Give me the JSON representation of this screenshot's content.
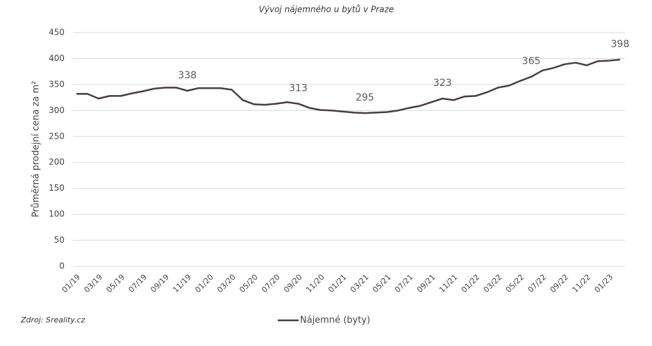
{
  "chart_data": {
    "type": "line",
    "title": "Vývoj nájemného u bytů v Praze",
    "y_label": "Průměrná prodejní cena za m²",
    "source": "Zdroj: Sreality.cz",
    "categories": [
      "01/19",
      null,
      "03/19",
      null,
      "05/19",
      null,
      "07/19",
      null,
      "09/19",
      null,
      "11/19",
      null,
      "01/20",
      null,
      "03/20",
      null,
      "05/20",
      null,
      "07/20",
      null,
      "09/20",
      null,
      "11/20",
      null,
      "01/21",
      null,
      "03/21",
      null,
      "05/21",
      null,
      "07/21",
      null,
      "09/21",
      null,
      "11/21",
      null,
      "01/22",
      null,
      "03/22",
      null,
      "05/22",
      null,
      "07/22",
      null,
      "09/22",
      null,
      "11/22",
      null,
      "01/23",
      null
    ],
    "series": [
      {
        "name": "Nájemné (byty)",
        "color": "#4a3c40",
        "values": [
          332,
          332,
          323,
          328,
          328,
          333,
          337,
          342,
          344,
          344,
          338,
          343,
          343,
          343,
          340,
          320,
          312,
          311,
          313,
          316,
          313,
          305,
          301,
          300,
          298,
          296,
          295,
          296,
          297,
          300,
          305,
          309,
          316,
          323,
          320,
          327,
          328,
          335,
          344,
          348,
          357,
          365,
          377,
          382,
          389,
          392,
          387,
          395,
          396,
          398
        ]
      }
    ],
    "labeled_points": [
      10,
      20,
      26,
      33,
      41,
      49
    ],
    "ylim": [
      0,
      450
    ],
    "yticks": [
      0,
      50,
      100,
      150,
      200,
      250,
      300,
      350,
      400,
      450
    ],
    "grid": true,
    "legend": "bottom"
  }
}
